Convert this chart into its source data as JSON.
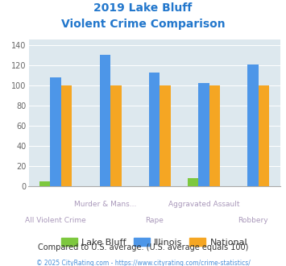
{
  "title_line1": "2019 Lake Bluff",
  "title_line2": "Violent Crime Comparison",
  "categories": [
    "All Violent Crime",
    "Murder & Mans...",
    "Rape",
    "Aggravated Assault",
    "Robbery"
  ],
  "series": {
    "Lake Bluff": [
      5,
      0,
      0,
      8,
      0
    ],
    "Illinois": [
      108,
      130,
      113,
      102,
      121
    ],
    "National": [
      100,
      100,
      100,
      100,
      100
    ]
  },
  "colors": {
    "Lake Bluff": "#7dc83e",
    "Illinois": "#4d96e8",
    "National": "#f5a623"
  },
  "ylim": [
    0,
    145
  ],
  "yticks": [
    0,
    20,
    40,
    60,
    80,
    100,
    120,
    140
  ],
  "plot_bg_color": "#dde8ee",
  "title_color": "#2277cc",
  "xlabel_color": "#aa99bb",
  "footer_text": "Compared to U.S. average. (U.S. average equals 100)",
  "copyright_text": "© 2025 CityRating.com - https://www.cityrating.com/crime-statistics/",
  "footer_color": "#333333",
  "copyright_color": "#4a90d9",
  "legend_labels": [
    "Lake Bluff",
    "Illinois",
    "National"
  ],
  "bar_width": 0.22
}
